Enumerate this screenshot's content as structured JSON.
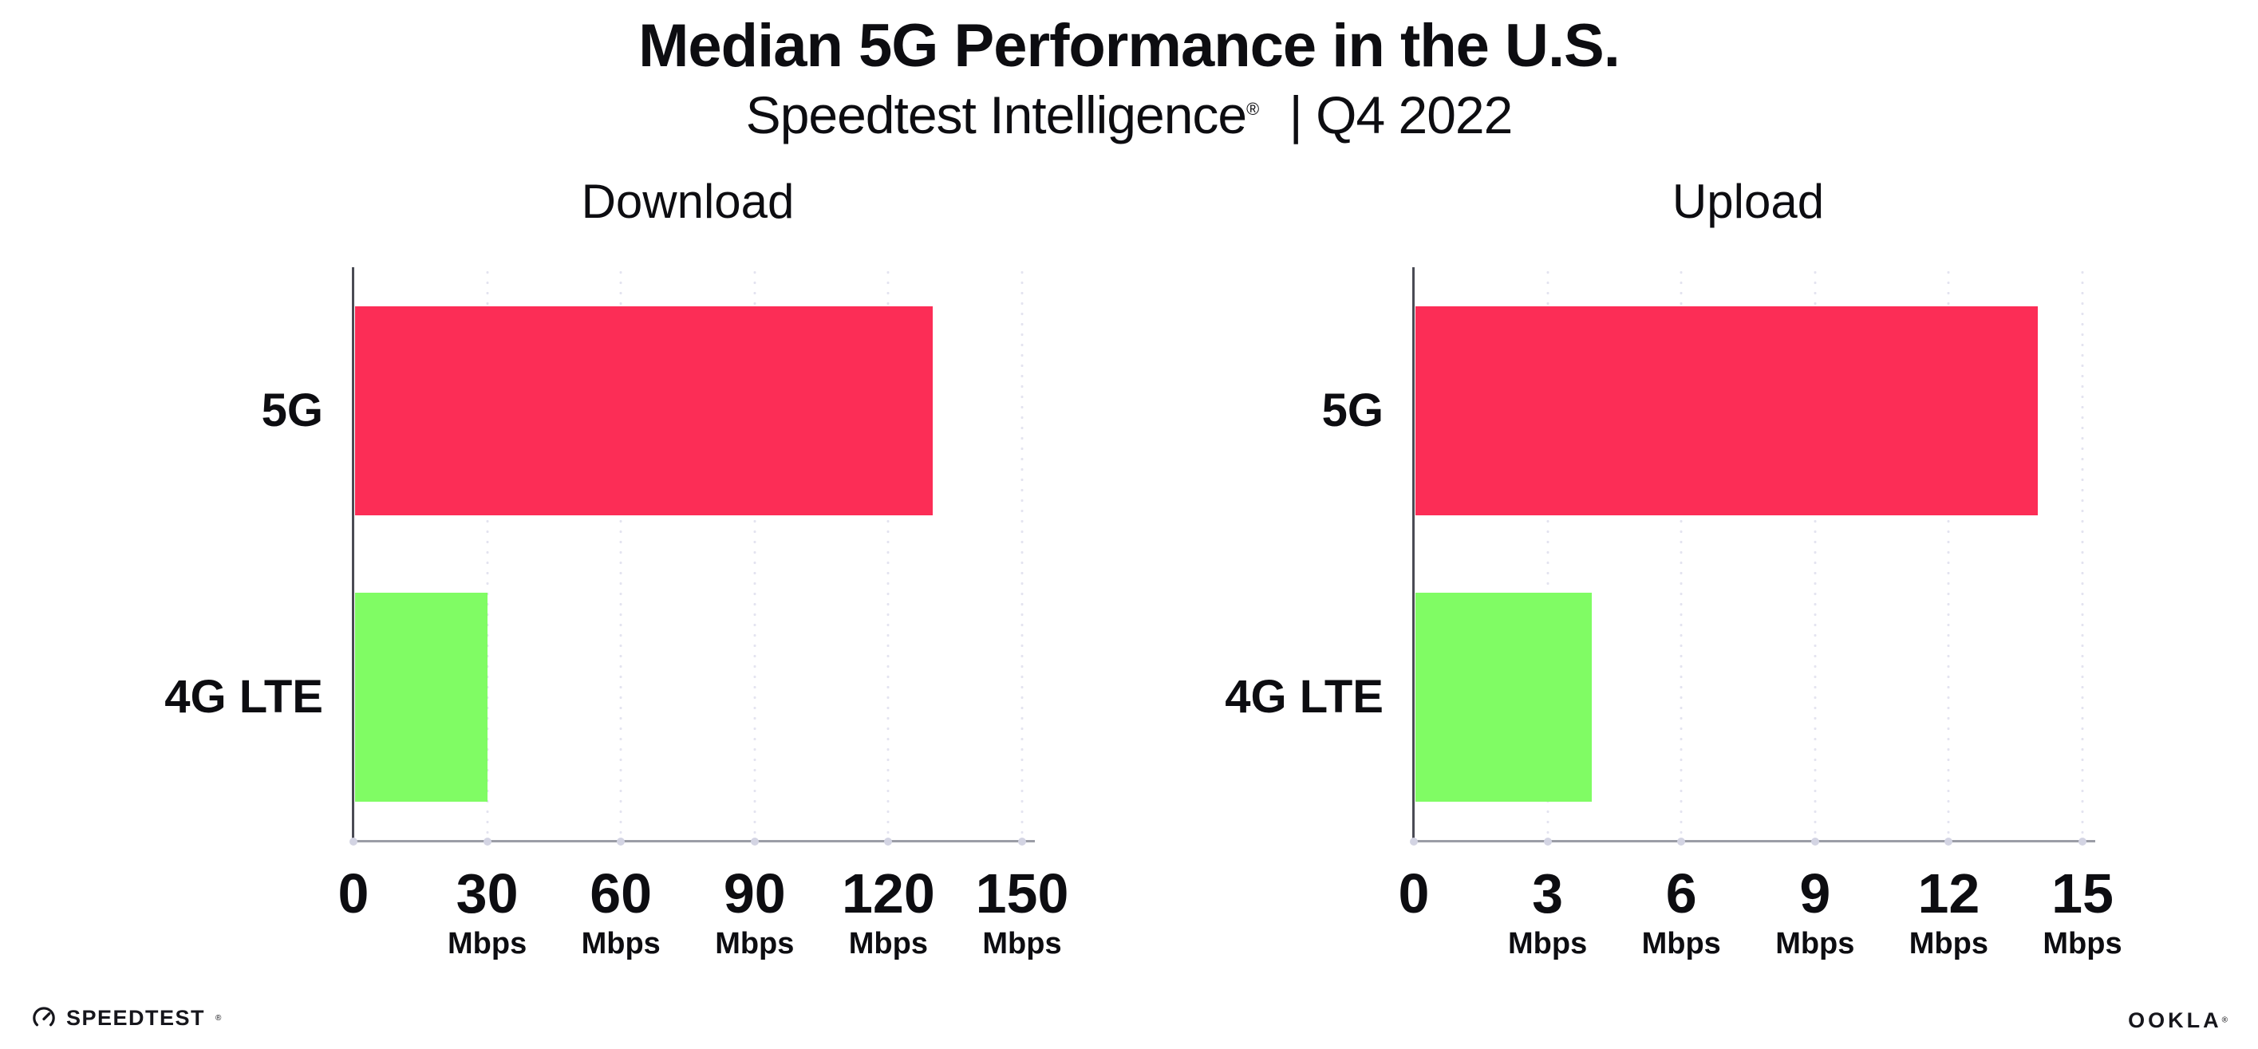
{
  "header": {
    "title": "Median 5G Performance in the U.S.",
    "subtitle_brand": "Speedtest Intelligence",
    "subtitle_reg": "®",
    "subtitle_period": "| Q4 2022"
  },
  "footer": {
    "speedtest_label": "SPEEDTEST",
    "speedtest_mark": "®",
    "speedtest_icon": "gauge-icon",
    "ookla_label": "OOKLA",
    "ookla_mark": "®"
  },
  "colors": {
    "bar_5g": "#FC2D56",
    "bar_4g_lte": "#80FC64",
    "gridline": "#E4E4F0",
    "x_axis": "#9B9DA6",
    "y_axis": "#4A4B54",
    "tick_dot": "#D3D4E3",
    "text": "#0D0D11"
  },
  "chart_data": [
    {
      "type": "bar",
      "orientation": "horizontal",
      "title": "Download",
      "categories": [
        "5G",
        "4G LTE"
      ],
      "values": [
        130,
        30
      ],
      "unit": "Mbps",
      "xlim": [
        0,
        150
      ],
      "xticks": [
        0,
        30,
        60,
        90,
        120,
        150
      ],
      "bar_colors": [
        "#FC2D56",
        "#80FC64"
      ],
      "grid": "dotted-vertical",
      "legend": "none"
    },
    {
      "type": "bar",
      "orientation": "horizontal",
      "title": "Upload",
      "categories": [
        "5G",
        "4G LTE"
      ],
      "values": [
        14,
        4
      ],
      "unit": "Mbps",
      "xlim": [
        0,
        15
      ],
      "xticks": [
        0,
        3,
        6,
        9,
        12,
        15
      ],
      "bar_colors": [
        "#FC2D56",
        "#80FC64"
      ],
      "grid": "dotted-vertical",
      "legend": "none"
    }
  ]
}
